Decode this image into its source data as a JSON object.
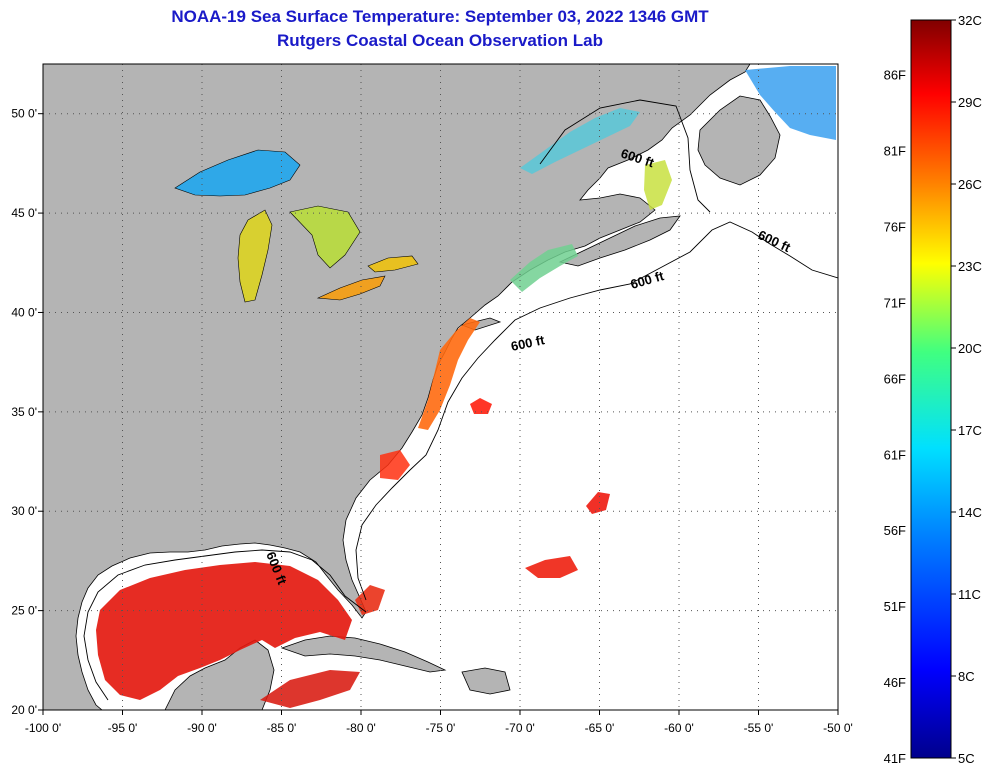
{
  "header": {
    "title_line1": "NOAA-19 Sea Surface Temperature:  September 03, 2022 1346 GMT",
    "title_line2": "Rutgers Coastal Ocean Observation Lab"
  },
  "map": {
    "lon_range": [
      -100,
      -50
    ],
    "lat_range": [
      20,
      52.5
    ],
    "lon_ticks": [
      {
        "value": -100,
        "label": "-100 0'"
      },
      {
        "value": -95,
        "label": "-95 0'"
      },
      {
        "value": -90,
        "label": "-90 0'"
      },
      {
        "value": -85,
        "label": "-85 0'"
      },
      {
        "value": -80,
        "label": "-80 0'"
      },
      {
        "value": -75,
        "label": "-75 0'"
      },
      {
        "value": -70,
        "label": "-70 0'"
      },
      {
        "value": -65,
        "label": "-65 0'"
      },
      {
        "value": -60,
        "label": "-60 0'"
      },
      {
        "value": -55,
        "label": "-55 0'"
      },
      {
        "value": -50,
        "label": "-50 0'"
      }
    ],
    "lat_ticks": [
      {
        "value": 50,
        "label": "50 0'"
      },
      {
        "value": 45,
        "label": "45 0'"
      },
      {
        "value": 40,
        "label": "40 0'"
      },
      {
        "value": 35,
        "label": "35 0'"
      },
      {
        "value": 30,
        "label": "30 0'"
      },
      {
        "value": 25,
        "label": "25 0'"
      },
      {
        "value": 20,
        "label": "20 0'"
      }
    ],
    "isobath_label": "600 ft",
    "colors": {
      "land": "#b4b4b4",
      "ocean": "#ffffff",
      "grid": "#555555"
    }
  },
  "colorbar": {
    "celsius_labels": [
      "32C",
      "29C",
      "26C",
      "23C",
      "20C",
      "17C",
      "14C",
      "11C",
      "8C",
      "5C"
    ],
    "fahrenheit_labels": [
      "86F",
      "81F",
      "76F",
      "71F",
      "66F",
      "61F",
      "56F",
      "51F",
      "46F",
      "41F"
    ],
    "colors": [
      "#00008c",
      "#0000ff",
      "#0080ff",
      "#00e0ff",
      "#40ff80",
      "#ffff00",
      "#ff8000",
      "#ff0000",
      "#800000"
    ]
  }
}
